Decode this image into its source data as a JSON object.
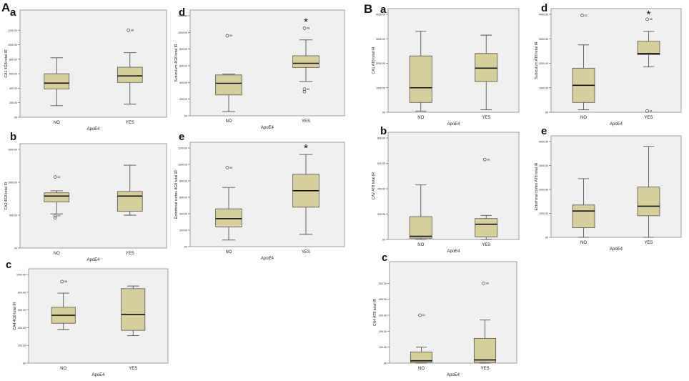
{
  "figure": {
    "group_a_label": "A",
    "group_b_label": "B",
    "colors": {
      "plot_bg": "#f0f0f0",
      "box_fill": "#d5cf9c",
      "box_stroke": "#555555",
      "text": "#222222"
    }
  },
  "chart_data": [
    {
      "type": "boxplot",
      "group": "A",
      "letter": "a",
      "ylabel": "CA1 4G8 total IR",
      "xlabel": "ApoE4",
      "ylim": [
        0,
        1400
      ],
      "yticks": [
        0,
        200,
        400,
        600,
        800,
        1000,
        1200
      ],
      "yticklabels": [
        ".00",
        "200.00",
        "400.00",
        "600.00",
        "800.00",
        "1000.00",
        "1200.00"
      ],
      "categories": [
        "NO",
        "YES"
      ],
      "boxes": [
        {
          "min": 160,
          "q1": 390,
          "median": 470,
          "q3": 600,
          "max": 820,
          "outliers": []
        },
        {
          "min": 180,
          "q1": 480,
          "median": 570,
          "q3": 690,
          "max": 890,
          "outliers": [
            {
              "value": 1200,
              "label": "38"
            }
          ]
        }
      ],
      "annotation": ""
    },
    {
      "type": "boxplot",
      "group": "A",
      "letter": "b",
      "ylabel": "CA2 4G8 total IR",
      "xlabel": "ApoE4",
      "ylim": [
        0,
        1500
      ],
      "yticks": [
        0,
        500,
        1000,
        1500
      ],
      "yticklabels": [
        ".00",
        "500.00",
        "1000.00",
        "1500.00"
      ],
      "categories": [
        "NO",
        "YES"
      ],
      "boxes": [
        {
          "min": 520,
          "q1": 700,
          "median": 790,
          "q3": 840,
          "max": 870,
          "outliers": [
            {
              "value": 1080,
              "label": "32"
            },
            {
              "value": 460,
              "label": ""
            },
            {
              "value": 490,
              "label": "29"
            }
          ]
        },
        {
          "min": 500,
          "q1": 560,
          "median": 790,
          "q3": 860,
          "max": 1260,
          "outliers": []
        }
      ],
      "annotation": ""
    },
    {
      "type": "boxplot",
      "group": "A",
      "letter": "c",
      "ylabel": "CA4 4G8 total IR",
      "xlabel": "ApoE4",
      "ylim": [
        0,
        1000
      ],
      "yticks": [
        0,
        200,
        400,
        600,
        800,
        1000
      ],
      "yticklabels": [
        ".00",
        "200.00",
        "400.00",
        "600.00",
        "800.00",
        "1000.00"
      ],
      "categories": [
        "NO",
        "YES"
      ],
      "boxes": [
        {
          "min": 380,
          "q1": 450,
          "median": 540,
          "q3": 630,
          "max": 790,
          "outliers": [
            {
              "value": 920,
              "label": "38"
            }
          ]
        },
        {
          "min": 310,
          "q1": 370,
          "median": 550,
          "q3": 840,
          "max": 870,
          "outliers": []
        }
      ],
      "annotation": ""
    },
    {
      "type": "boxplot",
      "group": "A",
      "letter": "d",
      "ylabel": "Subiculum 4G8 total IR",
      "xlabel": "ApoE4",
      "ylim": [
        0,
        1200
      ],
      "yticks": [
        0,
        200,
        400,
        600,
        800,
        1000,
        1200
      ],
      "yticklabels": [
        ".00",
        "200.00",
        "400.00",
        "600.00",
        "800.00",
        "1000.00",
        "1200.00"
      ],
      "categories": [
        "NO",
        "YES"
      ],
      "boxes": [
        {
          "min": 50,
          "q1": 250,
          "median": 390,
          "q3": 490,
          "max": 500,
          "outliers": [
            {
              "value": 960,
              "label": "30"
            }
          ]
        },
        {
          "min": 410,
          "q1": 580,
          "median": 630,
          "q3": 720,
          "max": 910,
          "outliers": [
            {
              "value": 1050,
              "label": "38"
            },
            {
              "value": 290,
              "label": ""
            },
            {
              "value": 320,
              "label": "32"
            }
          ]
        }
      ],
      "annotation": "*"
    },
    {
      "type": "boxplot",
      "group": "A",
      "letter": "e",
      "ylabel": "Entorhinal cortex 4G8 total IR",
      "xlabel": "ApoE4",
      "ylim": [
        0,
        1200
      ],
      "yticks": [
        0,
        200,
        400,
        600,
        800,
        1000,
        1200
      ],
      "yticklabels": [
        ".00",
        "200.00",
        "400.00",
        "600.00",
        "800.00",
        "1000.00",
        "1200.00"
      ],
      "categories": [
        "NO",
        "YES"
      ],
      "boxes": [
        {
          "min": 80,
          "q1": 240,
          "median": 340,
          "q3": 460,
          "max": 720,
          "outliers": [
            {
              "value": 960,
              "label": "40"
            }
          ]
        },
        {
          "min": 150,
          "q1": 480,
          "median": 680,
          "q3": 880,
          "max": 1120,
          "outliers": []
        }
      ],
      "annotation": "*"
    },
    {
      "type": "boxplot",
      "group": "B",
      "letter": "a",
      "ylabel": "CA1 AT8 total IR",
      "xlabel": "ApoE4",
      "ylim": [
        0,
        4000
      ],
      "yticks": [
        0,
        1000,
        2000,
        3000,
        4000
      ],
      "yticklabels": [
        ".00",
        "1000.00",
        "2000.00",
        "3000.00",
        "4000.00"
      ],
      "categories": [
        "NO",
        "YES"
      ],
      "boxes": [
        {
          "min": 50,
          "q1": 400,
          "median": 1000,
          "q3": 2300,
          "max": 3300,
          "outliers": []
        },
        {
          "min": 100,
          "q1": 1250,
          "median": 1800,
          "q3": 2400,
          "max": 3150,
          "outliers": []
        }
      ],
      "annotation": ""
    },
    {
      "type": "boxplot",
      "group": "B",
      "letter": "b",
      "ylabel": "CA2 AT8 total IR",
      "xlabel": "ApoE4",
      "ylim": [
        0,
        800
      ],
      "yticks": [
        0,
        200,
        400,
        600,
        800
      ],
      "yticklabels": [
        ".00",
        "200.00",
        "400.00",
        "600.00",
        "800.00"
      ],
      "categories": [
        "NO",
        "YES"
      ],
      "boxes": [
        {
          "min": 0,
          "q1": 10,
          "median": 25,
          "q3": 180,
          "max": 430,
          "outliers": []
        },
        {
          "min": 0,
          "q1": 20,
          "median": 120,
          "q3": 165,
          "max": 190,
          "outliers": [
            {
              "value": 630,
              "label": "38"
            }
          ]
        }
      ],
      "annotation": ""
    },
    {
      "type": "boxplot",
      "group": "B",
      "letter": "c",
      "ylabel": "CA4 AT8 total IR",
      "xlabel": "ApoE4",
      "ylim": [
        0,
        600
      ],
      "yticks": [
        0,
        100,
        200,
        300,
        400,
        500
      ],
      "yticklabels": [
        ".00",
        "100.00",
        "200.00",
        "300.00",
        "400.00",
        "500.00"
      ],
      "categories": [
        "NO",
        "YES"
      ],
      "boxes": [
        {
          "min": 0,
          "q1": 5,
          "median": 15,
          "q3": 70,
          "max": 100,
          "outliers": [
            {
              "value": 300,
              "label": "32"
            }
          ]
        },
        {
          "min": 0,
          "q1": 5,
          "median": 20,
          "q3": 155,
          "max": 270,
          "outliers": [
            {
              "value": 500,
              "label": "38"
            }
          ]
        }
      ],
      "annotation": ""
    },
    {
      "type": "boxplot",
      "group": "B",
      "letter": "d",
      "ylabel": "Subiculum AT8 total IR",
      "xlabel": "ApoE4",
      "ylim": [
        0,
        4000
      ],
      "yticks": [
        0,
        1000,
        2000,
        3000,
        4000
      ],
      "yticklabels": [
        ".00",
        "1000.00",
        "2000.00",
        "3000.00",
        "4000.00"
      ],
      "categories": [
        "NO",
        "YES"
      ],
      "boxes": [
        {
          "min": 100,
          "q1": 400,
          "median": 1100,
          "q3": 1800,
          "max": 2750,
          "outliers": [
            {
              "value": 3950,
              "label": "32"
            }
          ]
        },
        {
          "min": 1850,
          "q1": 2350,
          "median": 2400,
          "q3": 2900,
          "max": 3300,
          "outliers": [
            {
              "value": 3800,
              "label": "38"
            },
            {
              "value": 50,
              "label": "31"
            }
          ]
        }
      ],
      "annotation": "*"
    },
    {
      "type": "boxplot",
      "group": "B",
      "letter": "e",
      "ylabel": "Entorhinal cortex AT8 total IR",
      "xlabel": "ApoE4",
      "ylim": [
        0,
        4000
      ],
      "yticks": [
        0,
        1000,
        2000,
        3000,
        4000
      ],
      "yticklabels": [
        ".00",
        "1000.00",
        "2000.00",
        "3000.00",
        "4000.00"
      ],
      "categories": [
        "NO",
        "YES"
      ],
      "boxes": [
        {
          "min": 0,
          "q1": 400,
          "median": 1100,
          "q3": 1350,
          "max": 2450,
          "outliers": []
        },
        {
          "min": 0,
          "q1": 900,
          "median": 1300,
          "q3": 2100,
          "max": 3800,
          "outliers": []
        }
      ],
      "annotation": ""
    }
  ]
}
